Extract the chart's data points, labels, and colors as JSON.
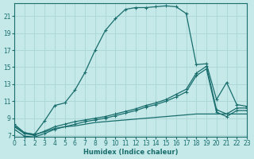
{
  "xlabel": "Humidex (Indice chaleur)",
  "bg_color": "#c5e8e8",
  "grid_color": "#aed8d8",
  "line_color": "#1a6e6e",
  "xlim": [
    0,
    23
  ],
  "ylim": [
    6.8,
    22.5
  ],
  "yticks": [
    7,
    9,
    11,
    13,
    15,
    17,
    19,
    21
  ],
  "xticks": [
    0,
    1,
    2,
    3,
    4,
    5,
    6,
    7,
    8,
    9,
    10,
    11,
    12,
    13,
    14,
    15,
    16,
    17,
    18,
    19,
    20,
    21,
    22,
    23
  ],
  "curve_main_x": [
    0,
    1,
    2,
    3,
    4,
    5,
    6,
    7,
    8,
    9,
    10,
    11,
    12,
    13,
    14,
    15,
    16,
    17,
    18,
    19,
    20,
    21,
    22,
    23
  ],
  "curve_main_y": [
    8.3,
    7.3,
    7.1,
    8.7,
    10.5,
    10.8,
    12.3,
    14.4,
    17.0,
    19.3,
    20.7,
    21.8,
    22.0,
    22.0,
    22.1,
    22.2,
    22.1,
    21.3,
    15.3,
    15.4,
    11.2,
    13.2,
    10.6,
    10.4
  ],
  "curve_diag1_x": [
    0,
    1,
    2,
    3,
    4,
    5,
    6,
    7,
    8,
    9,
    10,
    11,
    12,
    13,
    14,
    15,
    16,
    17,
    18,
    19,
    20,
    21,
    22,
    23
  ],
  "curve_diag1_y": [
    8.0,
    7.2,
    7.0,
    7.5,
    8.0,
    8.3,
    8.6,
    8.8,
    9.0,
    9.2,
    9.5,
    9.8,
    10.1,
    10.5,
    10.8,
    11.2,
    11.8,
    12.4,
    14.3,
    15.1,
    10.0,
    9.5,
    10.2,
    10.2
  ],
  "curve_diag2_x": [
    0,
    1,
    2,
    3,
    4,
    5,
    6,
    7,
    8,
    9,
    10,
    11,
    12,
    13,
    14,
    15,
    16,
    17,
    18,
    19,
    20,
    21,
    22,
    23
  ],
  "curve_diag2_y": [
    7.7,
    6.9,
    6.8,
    7.2,
    7.7,
    8.0,
    8.3,
    8.6,
    8.8,
    9.0,
    9.3,
    9.6,
    9.9,
    10.3,
    10.6,
    11.0,
    11.5,
    12.1,
    14.0,
    14.8,
    9.7,
    9.2,
    9.9,
    9.9
  ],
  "curve_flat_x": [
    0,
    1,
    2,
    3,
    4,
    5,
    6,
    7,
    8,
    9,
    10,
    11,
    12,
    13,
    14,
    15,
    16,
    17,
    18,
    19,
    20,
    21,
    22,
    23
  ],
  "curve_flat_y": [
    8.1,
    7.3,
    7.1,
    7.4,
    7.8,
    8.0,
    8.1,
    8.3,
    8.5,
    8.6,
    8.7,
    8.8,
    8.9,
    9.0,
    9.1,
    9.2,
    9.3,
    9.4,
    9.5,
    9.5,
    9.5,
    9.5,
    9.5,
    9.5
  ]
}
